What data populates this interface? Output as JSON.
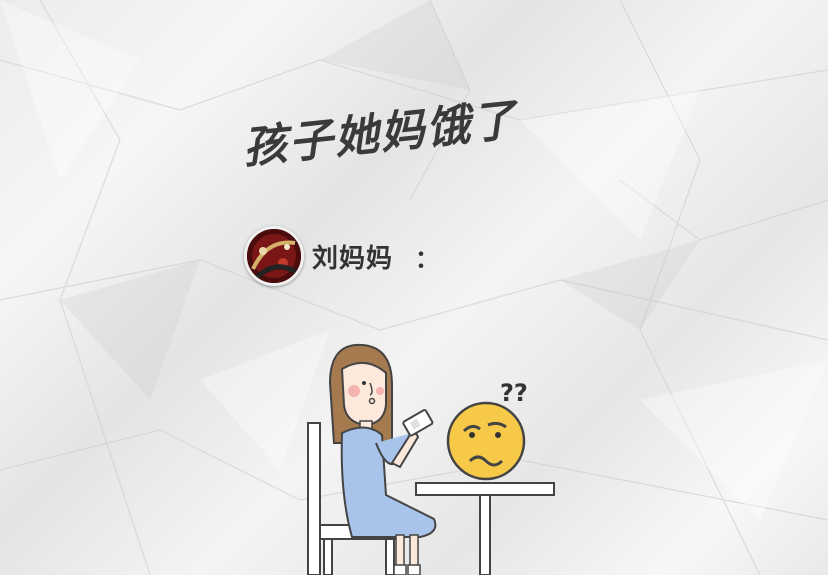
{
  "title": "孩子她妈饿了",
  "speaker": {
    "name": "刘妈妈",
    "colon": "："
  },
  "emoji": {
    "question_marks": "??"
  },
  "colors": {
    "text": "#333333",
    "emoji_yellow": "#f7c948",
    "dress_blue": "#a9c4ea",
    "hair_brown": "#a57a4f"
  }
}
